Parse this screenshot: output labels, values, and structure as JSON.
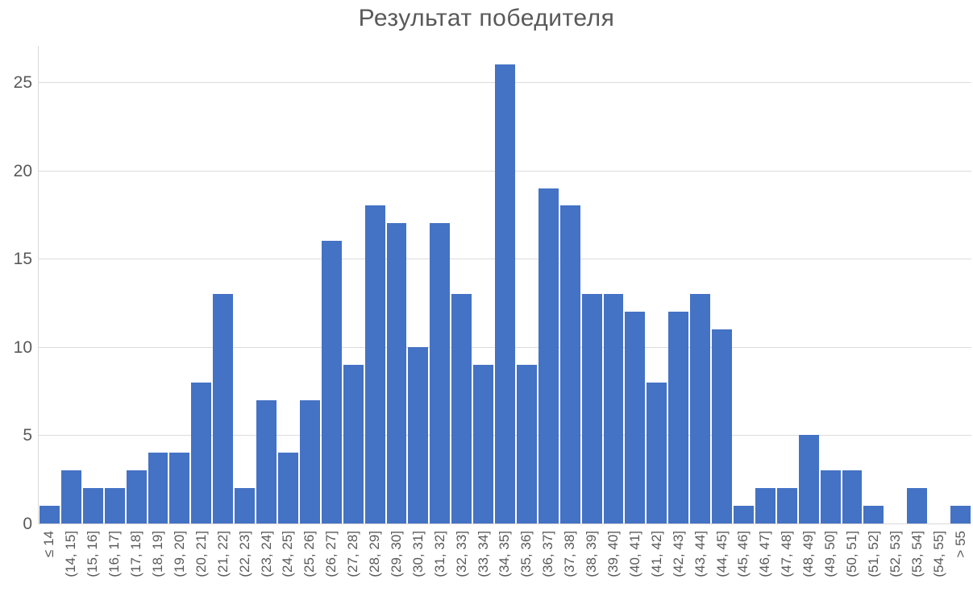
{
  "chart_data": {
    "type": "bar",
    "title": "Результат победителя",
    "categories": [
      "≤ 14",
      "(14, 15]",
      "(15, 16]",
      "(16, 17]",
      "(17, 18]",
      "(18, 19]",
      "(19, 20]",
      "(20, 21]",
      "(21, 22]",
      "(22, 23]",
      "(23, 24]",
      "(24, 25]",
      "(25, 26]",
      "(26, 27]",
      "(27, 28]",
      "(28, 29]",
      "(29, 30]",
      "(30, 31]",
      "(31, 32]",
      "(32, 33]",
      "(33, 34]",
      "(34, 35]",
      "(35, 36]",
      "(36, 37]",
      "(37, 38]",
      "(38, 39]",
      "(39, 40]",
      "(40, 41]",
      "(41, 42]",
      "(42, 43]",
      "(43, 44]",
      "(44, 45]",
      "(45, 46]",
      "(46, 47]",
      "(47, 48]",
      "(48, 49]",
      "(49, 50]",
      "(50, 51]",
      "(51, 52]",
      "(52, 53]",
      "(53, 54]",
      "(54, 55]",
      "> 55"
    ],
    "values": [
      1,
      3,
      2,
      2,
      3,
      4,
      4,
      8,
      13,
      2,
      7,
      4,
      7,
      16,
      9,
      18,
      17,
      10,
      17,
      13,
      9,
      26,
      9,
      19,
      18,
      13,
      13,
      12,
      8,
      12,
      13,
      11,
      1,
      2,
      2,
      5,
      3,
      3,
      1,
      0,
      2,
      0,
      1
    ],
    "xlabel": "",
    "ylabel": "",
    "yticks": [
      0,
      5,
      10,
      15,
      20,
      25
    ],
    "ylim": [
      0,
      27.1
    ],
    "grid": true,
    "legend_position": "none",
    "bar_color": "#4472C4",
    "grid_color": "#DCDCDC",
    "axis_color": "#D9D9D9",
    "text_color": "#595959",
    "background_color": "#FFFFFF"
  }
}
